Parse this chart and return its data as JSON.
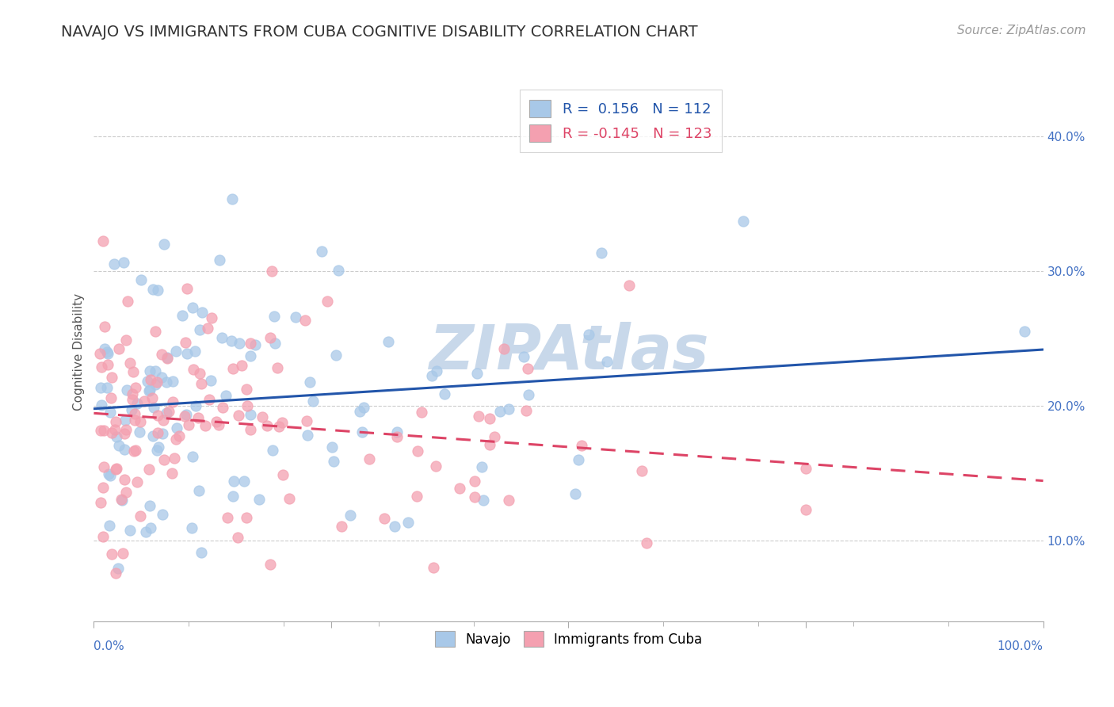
{
  "title": "NAVAJO VS IMMIGRANTS FROM CUBA COGNITIVE DISABILITY CORRELATION CHART",
  "source_text": "Source: ZipAtlas.com",
  "ylabel": "Cognitive Disability",
  "xlim": [
    0.0,
    1.0
  ],
  "ylim": [
    0.04,
    0.44
  ],
  "yticks": [
    0.1,
    0.2,
    0.3,
    0.4
  ],
  "ytick_labels": [
    "10.0%",
    "20.0%",
    "30.0%",
    "40.0%"
  ],
  "r1": 0.156,
  "n1": 112,
  "r2": -0.145,
  "n2": 123,
  "color1": "#a8c8e8",
  "color2": "#f4a0b0",
  "line_color1": "#2255aa",
  "line_color2": "#dd4466",
  "legend_label1": "Navajo",
  "legend_label2": "Immigrants from Cuba",
  "background_color": "#ffffff",
  "watermark_text": "ZIPAtlas",
  "watermark_color": "#c8d8ea",
  "grid_color": "#cccccc",
  "title_fontsize": 14,
  "axis_label_fontsize": 11,
  "tick_fontsize": 11,
  "source_fontsize": 11,
  "tick_color": "#4472c4"
}
